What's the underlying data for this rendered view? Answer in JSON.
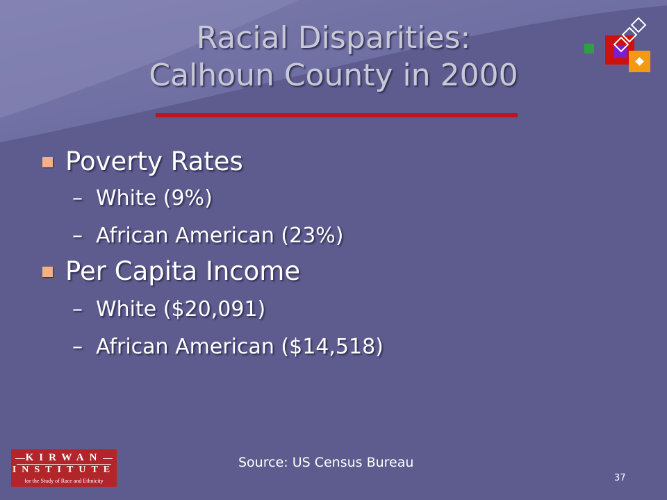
{
  "slide": {
    "title_line1": "Racial Disparities:",
    "title_line2": "Calhoun County in 2000",
    "bullets": [
      {
        "label": "Poverty Rates",
        "subitems": [
          {
            "dash": "–",
            "label": "White (9%)"
          },
          {
            "dash": "–",
            "label": "African American (23%)"
          }
        ]
      },
      {
        "label": "Per Capita Income",
        "subitems": [
          {
            "dash": "–",
            "label": "White ($20,091)"
          },
          {
            "dash": "–",
            "label": "African American ($14,518)"
          }
        ]
      }
    ],
    "source": "Source: US Census Bureau",
    "page_number": "37"
  },
  "logo": {
    "word1": "KIRWAN",
    "word2": "INSTITUTE",
    "tagline": "for the Study of Race and Ethnicity"
  },
  "colors": {
    "background": "#5e5c8e",
    "title_rule": "#c1121f",
    "bullet": "#f4b185",
    "logo": "#b2262b",
    "deco_green": "#2ea043",
    "deco_red": "#cc1111",
    "deco_orange": "#f39a12",
    "deco_purple": "#7a1fd0"
  },
  "icons": {
    "corner_decoration": "diamond-squares-icon"
  }
}
